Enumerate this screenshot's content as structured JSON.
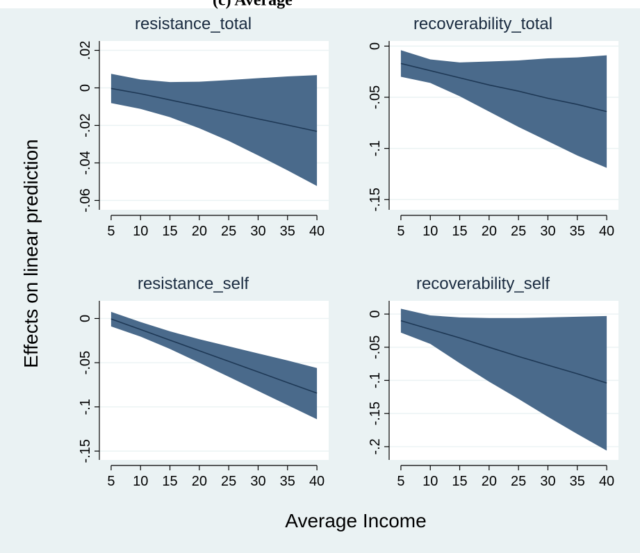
{
  "figure": {
    "header": "(c) Average",
    "xlabel": "Average Income",
    "ylabel": "Effects on linear prediction"
  },
  "colors": {
    "background": "#eaf2f3",
    "plot_background": "#ffffff",
    "ci_fill": "#4a6a8b",
    "estimate_line": "#1e3855",
    "title_color": "#1a2b40"
  },
  "chart_data": [
    {
      "type": "area",
      "title": "resistance_total",
      "x_ticks": [
        5,
        10,
        15,
        20,
        25,
        30,
        35,
        40
      ],
      "y_ticks": [
        0.02,
        0,
        -0.02,
        -0.04,
        -0.06
      ],
      "y_tick_labels": [
        ".02",
        "0",
        "-.02",
        "-.04",
        "-.06"
      ],
      "xlim": [
        3,
        42
      ],
      "ylim": [
        -0.065,
        0.025
      ],
      "grid": true,
      "series": [
        {
          "x": [
            5,
            10,
            15,
            20,
            25,
            30,
            35,
            40
          ],
          "estimate": [
            -0.0003,
            -0.0031,
            -0.0064,
            -0.0097,
            -0.0131,
            -0.0165,
            -0.0198,
            -0.0232
          ],
          "lower": [
            -0.0081,
            -0.0112,
            -0.0156,
            -0.0215,
            -0.0283,
            -0.036,
            -0.044,
            -0.0523
          ],
          "upper": [
            0.0075,
            0.0045,
            0.0031,
            0.0033,
            0.0042,
            0.0052,
            0.0061,
            0.0068
          ]
        }
      ]
    },
    {
      "type": "area",
      "title": "recoverability_total",
      "x_ticks": [
        5,
        10,
        15,
        20,
        25,
        30,
        35,
        40
      ],
      "y_ticks": [
        0,
        -0.05,
        -0.1,
        -0.15
      ],
      "y_tick_labels": [
        "0",
        "-.05",
        "-.1",
        "-.15"
      ],
      "xlim": [
        3,
        42
      ],
      "ylim": [
        -0.16,
        0.005
      ],
      "grid": true,
      "series": [
        {
          "x": [
            5,
            10,
            15,
            20,
            25,
            30,
            35,
            40
          ],
          "estimate": [
            -0.017,
            -0.024,
            -0.031,
            -0.038,
            -0.044,
            -0.051,
            -0.057,
            -0.064
          ],
          "lower": [
            -0.03,
            -0.036,
            -0.049,
            -0.064,
            -0.079,
            -0.093,
            -0.107,
            -0.119
          ],
          "upper": [
            -0.004,
            -0.013,
            -0.016,
            -0.015,
            -0.014,
            -0.012,
            -0.011,
            -0.009
          ]
        }
      ]
    },
    {
      "type": "area",
      "title": "resistance_self",
      "x_ticks": [
        5,
        10,
        15,
        20,
        25,
        30,
        35,
        40
      ],
      "y_ticks": [
        0,
        -0.05,
        -0.1,
        -0.15
      ],
      "y_tick_labels": [
        "0",
        "-.05",
        "-.1",
        "-.15"
      ],
      "xlim": [
        3,
        42
      ],
      "ylim": [
        -0.16,
        0.02
      ],
      "grid": true,
      "series": [
        {
          "x": [
            5,
            10,
            15,
            20,
            25,
            30,
            35,
            40
          ],
          "estimate": [
            -0.0005,
            -0.0125,
            -0.0245,
            -0.0365,
            -0.0485,
            -0.0605,
            -0.0725,
            -0.0845
          ],
          "lower": [
            -0.009,
            -0.0205,
            -0.0345,
            -0.05,
            -0.066,
            -0.082,
            -0.098,
            -0.114
          ],
          "upper": [
            0.0075,
            -0.004,
            -0.0145,
            -0.0235,
            -0.0315,
            -0.0395,
            -0.0475,
            -0.056
          ]
        }
      ]
    },
    {
      "type": "area",
      "title": "recoverability_self",
      "x_ticks": [
        5,
        10,
        15,
        20,
        25,
        30,
        35,
        40
      ],
      "y_ticks": [
        0,
        -0.05,
        -0.1,
        -0.15,
        -0.2
      ],
      "y_tick_labels": [
        "0",
        "-.05",
        "-.1",
        "-.15",
        "-.2"
      ],
      "xlim": [
        3,
        42
      ],
      "ylim": [
        -0.22,
        0.02
      ],
      "grid": true,
      "series": [
        {
          "x": [
            5,
            10,
            15,
            20,
            25,
            30,
            35,
            40
          ],
          "estimate": [
            -0.01,
            -0.023,
            -0.036,
            -0.05,
            -0.064,
            -0.077,
            -0.09,
            -0.104
          ],
          "lower": [
            -0.028,
            -0.045,
            -0.074,
            -0.102,
            -0.128,
            -0.155,
            -0.181,
            -0.206
          ],
          "upper": [
            0.008,
            -0.002,
            -0.005,
            -0.006,
            -0.006,
            -0.005,
            -0.004,
            -0.003
          ]
        }
      ]
    }
  ]
}
